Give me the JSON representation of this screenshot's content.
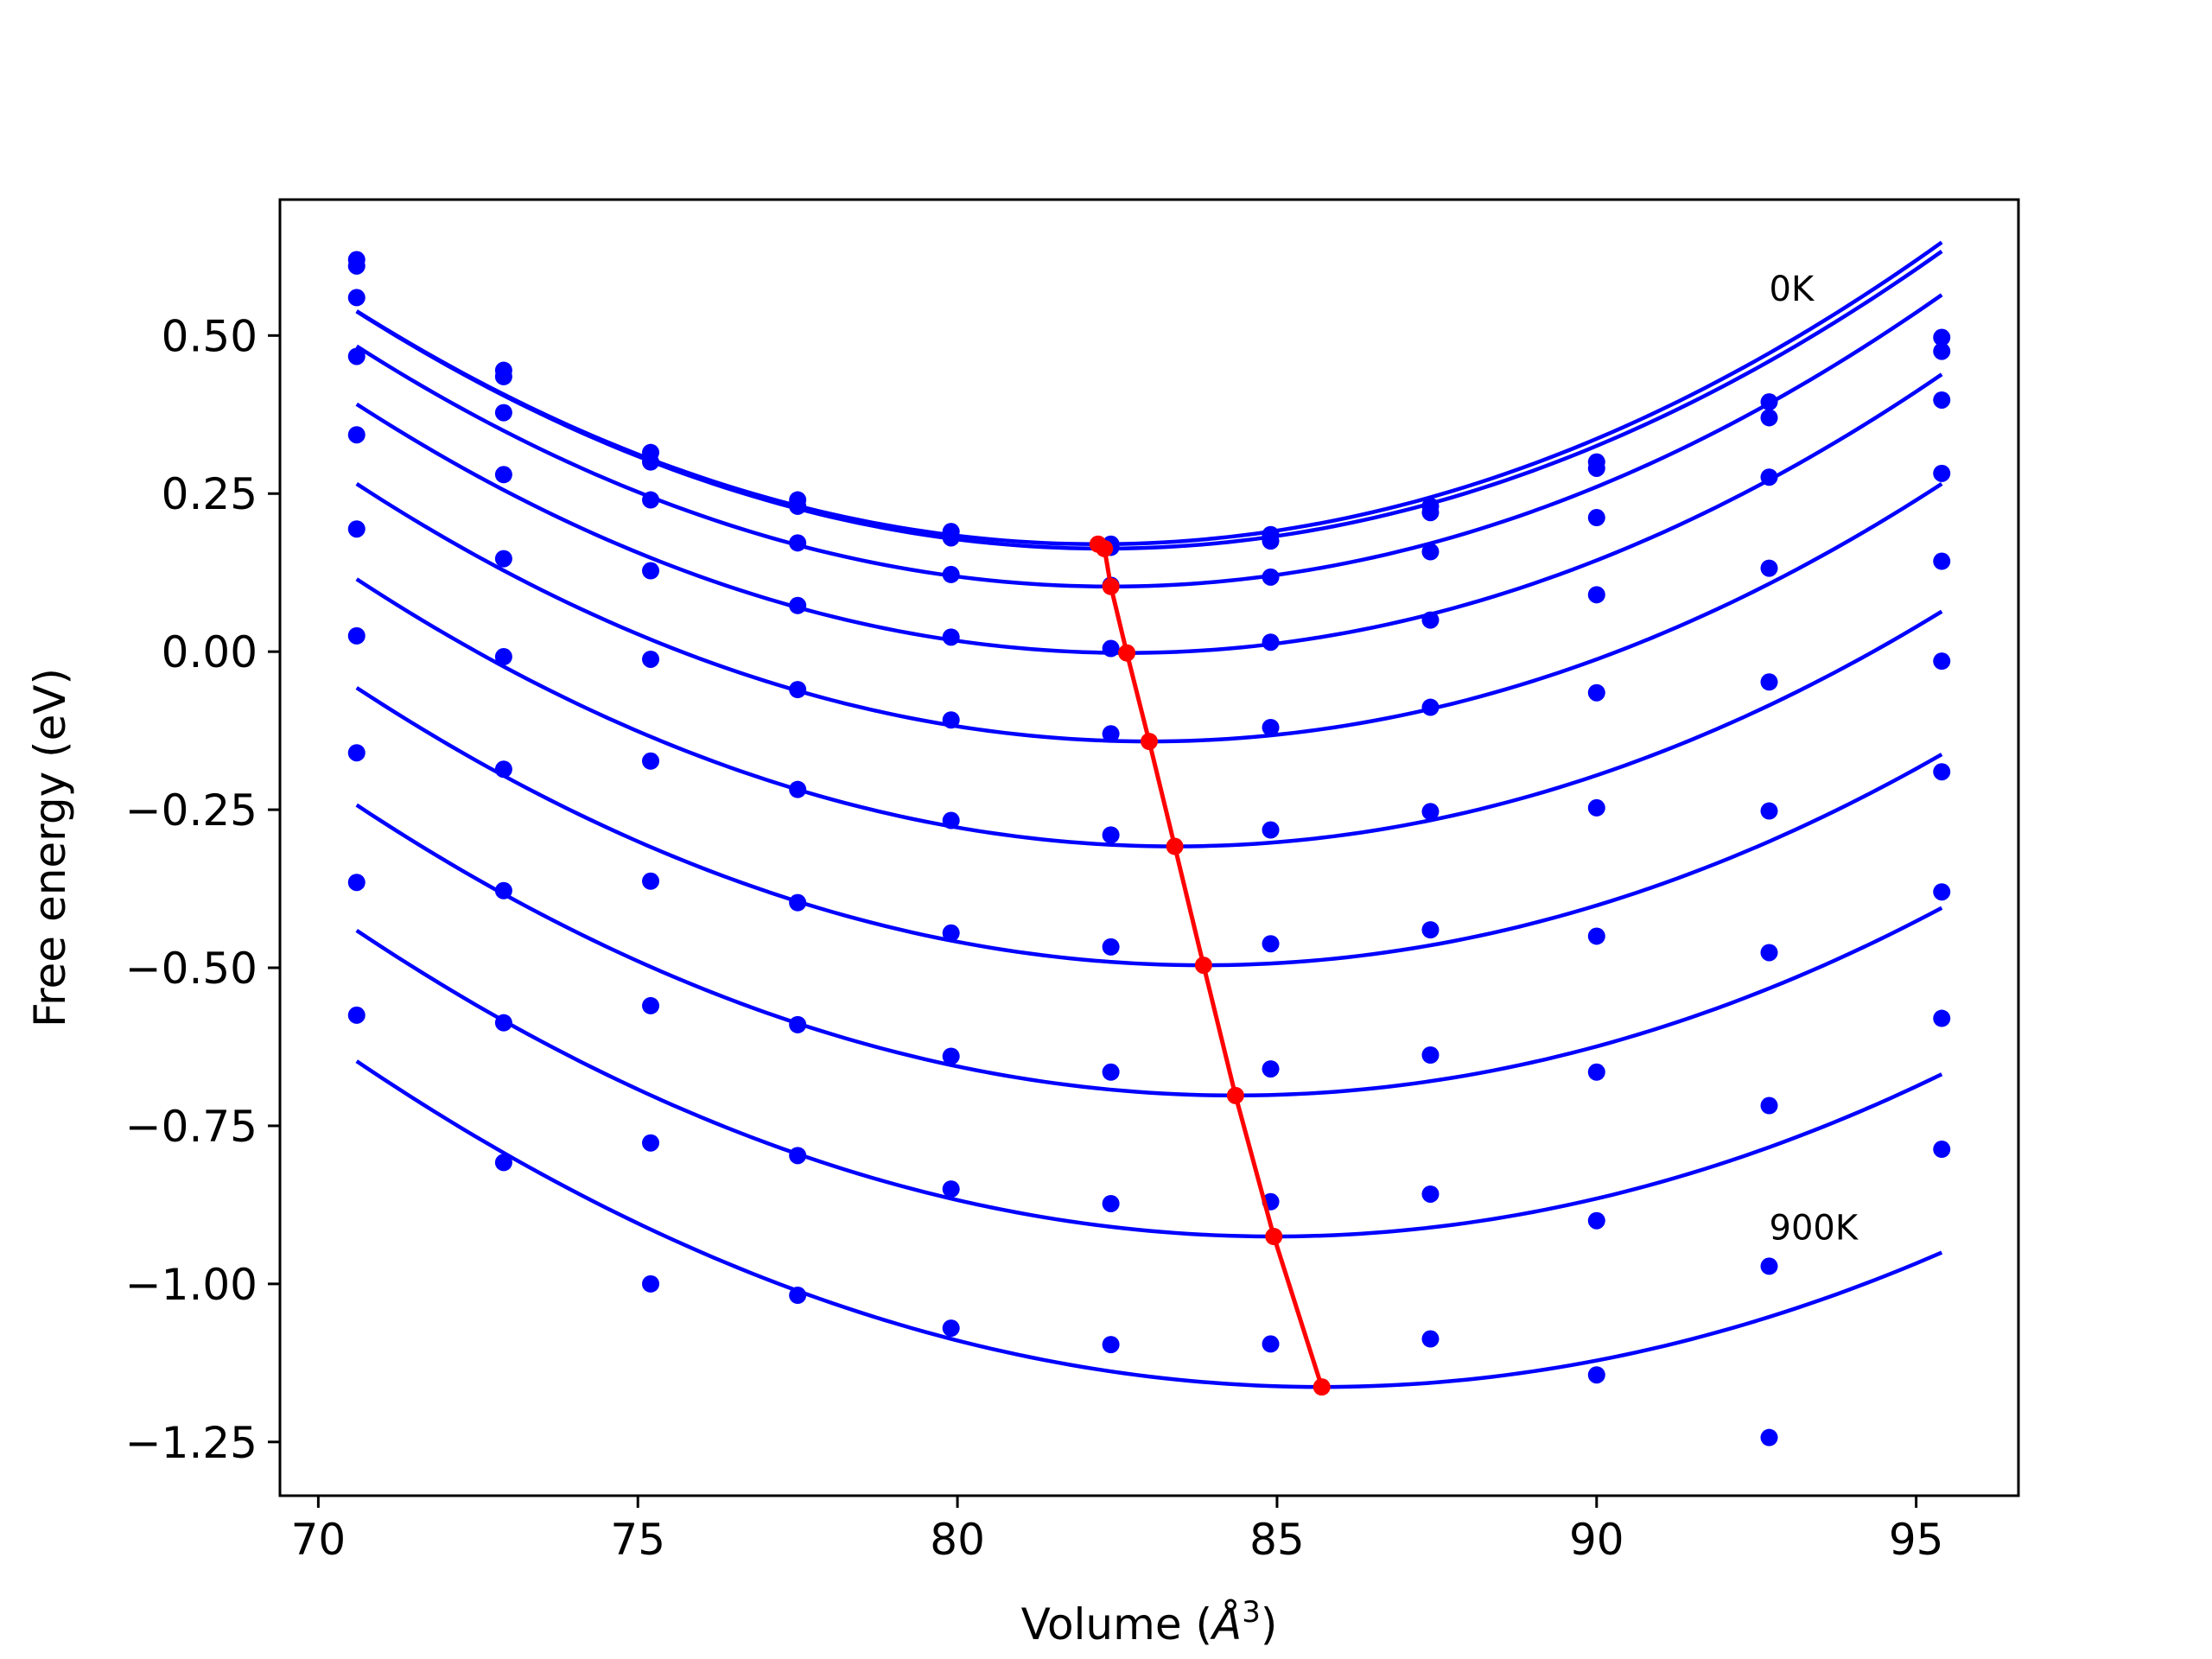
{
  "chart_data": {
    "type": "scatter",
    "title": "",
    "xlabel": "Volume (",
    "xlabel_symbol": "Å",
    "xlabel_exp": "3",
    "xlabel_close": ")",
    "ylabel": "Free energy (eV)",
    "xlim": [
      69.4,
      96.6
    ],
    "ylim": [
      -1.335,
      0.715
    ],
    "xticks": [
      70,
      75,
      80,
      85,
      90,
      95
    ],
    "xtick_labels": [
      "70",
      "75",
      "80",
      "85",
      "90",
      "95"
    ],
    "yticks": [
      0.5,
      0.25,
      0.0,
      -0.25,
      -0.5,
      -0.75,
      -1.0,
      -1.25
    ],
    "ytick_labels": [
      "0.50",
      "0.25",
      "0.00",
      "−0.25",
      "−0.50",
      "−0.75",
      "−1.00",
      "−1.25"
    ],
    "grid": false,
    "annotations": [
      {
        "text": "0K",
        "x": 92.7,
        "y": 0.555
      },
      {
        "text": "900K",
        "x": 92.7,
        "y": -0.93
      }
    ],
    "colors": {
      "points": "#0000ff",
      "fits": "#0000ff",
      "minima": "#ff0000"
    },
    "volumes": [
      70.6,
      72.9,
      75.2,
      77.5,
      79.9,
      82.4,
      84.9,
      87.4,
      90.0,
      92.7,
      95.4
    ],
    "series": [
      {
        "points": [
          0.62,
          0.445,
          0.315,
          0.24,
          0.19,
          0.17,
          0.185,
          0.23,
          0.3,
          0.395,
          0.497
        ],
        "fit": {
          "vmin": 82.2,
          "emin": 0.17,
          "a": 0.00274
        }
      },
      {
        "points": [
          0.61,
          0.435,
          0.3,
          0.23,
          0.18,
          0.165,
          0.175,
          0.22,
          0.29,
          0.37,
          0.475
        ],
        "fit": {
          "vmin": 82.3,
          "emin": 0.163,
          "a": 0.00274
        }
      },
      {
        "points": [
          0.56,
          0.378,
          0.24,
          0.172,
          0.122,
          0.105,
          0.118,
          0.158,
          0.212,
          0.276,
          0.398
        ],
        "fit": {
          "vmin": 82.4,
          "emin": 0.103,
          "a": 0.00273
        }
      },
      {
        "points": [
          0.467,
          0.28,
          0.128,
          0.073,
          0.023,
          0.005,
          0.015,
          0.05,
          0.09,
          0.132,
          0.282
        ],
        "fit": {
          "vmin": 82.65,
          "emin": -0.002,
          "a": 0.00271
        }
      },
      {
        "points": [
          0.343,
          0.147,
          -0.012,
          -0.06,
          -0.108,
          -0.13,
          -0.12,
          -0.088,
          -0.065,
          -0.048,
          0.143
        ],
        "fit": {
          "vmin": 83.0,
          "emin": -0.142,
          "a": 0.00265
        }
      },
      {
        "points": [
          0.194,
          -0.008,
          -0.173,
          -0.218,
          -0.267,
          -0.29,
          -0.282,
          -0.253,
          -0.247,
          -0.252,
          -0.015
        ],
        "fit": {
          "vmin": 83.4,
          "emin": -0.308,
          "a": 0.00258
        }
      },
      {
        "points": [
          0.025,
          -0.186,
          -0.363,
          -0.397,
          -0.445,
          -0.467,
          -0.462,
          -0.44,
          -0.45,
          -0.476,
          -0.19
        ],
        "fit": {
          "vmin": 83.85,
          "emin": -0.496,
          "a": 0.0025
        }
      },
      {
        "points": [
          -0.16,
          -0.378,
          -0.56,
          -0.59,
          -0.64,
          -0.665,
          -0.66,
          -0.638,
          -0.665,
          -0.718,
          -0.38
        ],
        "fit": {
          "vmin": 84.35,
          "emin": -0.702,
          "a": 0.00243
        }
      },
      {
        "points": [
          -0.365,
          -0.587,
          -0.777,
          -0.797,
          -0.85,
          -0.873,
          -0.87,
          -0.858,
          -0.9,
          -0.972,
          -0.58
        ],
        "fit": {
          "vmin": 84.95,
          "emin": -0.925,
          "a": 0.00235
        }
      },
      {
        "points": [
          -0.575,
          -0.808,
          -1.0,
          -1.018,
          -1.07,
          -1.096,
          -1.095,
          -1.087,
          -1.144,
          -1.243,
          -0.787
        ],
        "fit": {
          "vmin": 85.7,
          "emin": -1.163,
          "a": 0.00226
        }
      }
    ],
    "minima_line": {
      "x": [
        82.2,
        82.3,
        82.4,
        82.65,
        83.0,
        83.4,
        83.85,
        84.35,
        84.95,
        85.7
      ],
      "y": [
        0.17,
        0.163,
        0.103,
        -0.002,
        -0.142,
        -0.308,
        -0.496,
        -0.702,
        -0.925,
        -1.163
      ]
    }
  }
}
